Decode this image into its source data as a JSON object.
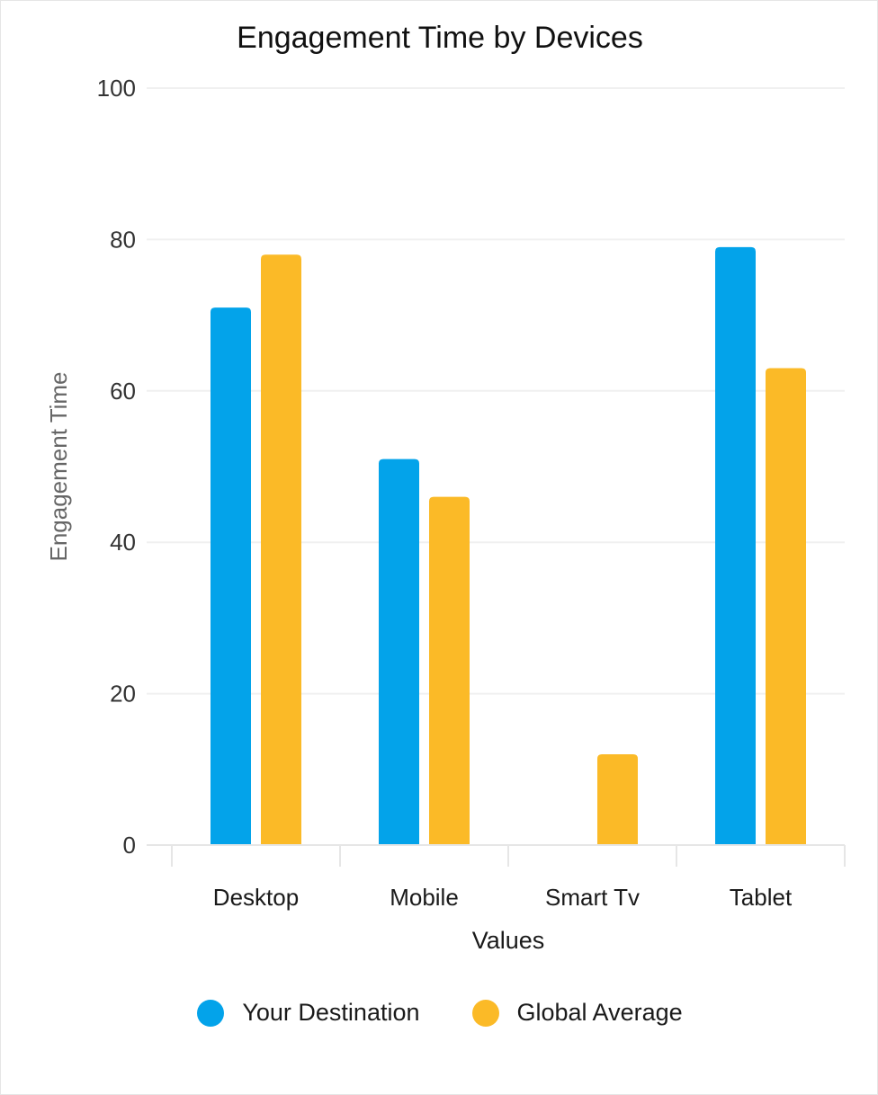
{
  "chart_data": {
    "type": "bar",
    "title": "Engagement Time by Devices",
    "xlabel": "Values",
    "ylabel": "Engagement Time",
    "categories": [
      "Desktop",
      "Mobile",
      "Smart Tv",
      "Tablet"
    ],
    "series": [
      {
        "name": "Your Destination",
        "color": "#03a3ea",
        "values": [
          71,
          51,
          0,
          79
        ]
      },
      {
        "name": "Global Average",
        "color": "#fbba27",
        "values": [
          78,
          46,
          12,
          63
        ]
      }
    ],
    "ylim": [
      0,
      100
    ],
    "yticks": [
      0,
      20,
      40,
      60,
      80,
      100
    ],
    "grid": true,
    "legend_position": "bottom"
  }
}
